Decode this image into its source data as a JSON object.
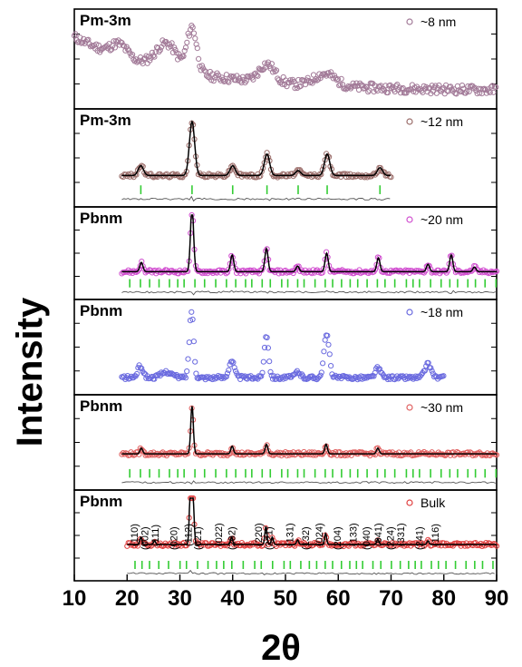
{
  "figure": {
    "ylabel": "Intensity",
    "xlabel": "2θ",
    "x_ticks": [
      "10",
      "20",
      "30",
      "40",
      "50",
      "60",
      "70",
      "80",
      "90"
    ]
  },
  "chart_data": [
    {
      "type": "scatter",
      "space_group": "Pm-3m",
      "size_label": "~8 nm",
      "xlim": [
        10,
        90
      ],
      "marker_color": "#a27a98",
      "baseline": 0.18,
      "peaks": [
        {
          "x": 18.5,
          "h": 0.12,
          "w": 1.5
        },
        {
          "x": 27.5,
          "h": 0.25,
          "w": 2.0
        },
        {
          "x": 32.3,
          "h": 0.45,
          "w": 0.9
        },
        {
          "x": 46.5,
          "h": 0.18,
          "w": 1.5
        },
        {
          "x": 57.5,
          "h": 0.12,
          "w": 2.0
        }
      ],
      "x_range": [
        10,
        90
      ],
      "start_level": 0.72,
      "decay": "exponential",
      "fit": false,
      "ticks": null,
      "difference": false
    },
    {
      "type": "scatter",
      "space_group": "Pm-3m",
      "size_label": "~12 nm",
      "xlim": [
        10,
        90
      ],
      "marker_color": "#9b6d6a",
      "fit_color": "#000000",
      "tick_color": "#33cc33",
      "baseline": 0.32,
      "peaks": [
        {
          "x": 22.6,
          "h": 0.1,
          "w": 0.5
        },
        {
          "x": 32.3,
          "h": 0.55,
          "w": 0.5
        },
        {
          "x": 40.0,
          "h": 0.1,
          "w": 0.5
        },
        {
          "x": 46.5,
          "h": 0.22,
          "w": 0.5
        },
        {
          "x": 52.4,
          "h": 0.05,
          "w": 0.5
        },
        {
          "x": 57.9,
          "h": 0.22,
          "w": 0.5
        },
        {
          "x": 67.9,
          "h": 0.08,
          "w": 0.5
        }
      ],
      "x_range": [
        19,
        70
      ],
      "fit": true,
      "ticks": [
        22.6,
        32.3,
        40.0,
        46.5,
        52.4,
        57.9,
        67.9
      ],
      "difference": true
    },
    {
      "type": "scatter",
      "space_group": "Pbnm",
      "size_label": "~20 nm",
      "xlim": [
        10,
        90
      ],
      "marker_color": "#d04fcf",
      "fit_color": "#000000",
      "tick_color": "#33cc33",
      "baseline": 0.3,
      "peaks": [
        {
          "x": 22.7,
          "h": 0.1,
          "w": 0.3
        },
        {
          "x": 32.3,
          "h": 0.7,
          "w": 0.3
        },
        {
          "x": 39.9,
          "h": 0.18,
          "w": 0.3
        },
        {
          "x": 46.4,
          "h": 0.25,
          "w": 0.3
        },
        {
          "x": 52.3,
          "h": 0.06,
          "w": 0.3
        },
        {
          "x": 57.8,
          "h": 0.2,
          "w": 0.3
        },
        {
          "x": 67.6,
          "h": 0.15,
          "w": 0.3
        },
        {
          "x": 77.0,
          "h": 0.08,
          "w": 0.3
        },
        {
          "x": 81.4,
          "h": 0.18,
          "w": 0.3
        },
        {
          "x": 85.8,
          "h": 0.05,
          "w": 0.3
        }
      ],
      "x_range": [
        19,
        90
      ],
      "fit": true,
      "ticks": "dense",
      "difference": true
    },
    {
      "type": "scatter",
      "space_group": "Pbnm",
      "size_label": "~18 nm",
      "xlim": [
        10,
        90
      ],
      "marker_color": "#6a6adf",
      "baseline": 0.18,
      "peaks": [
        {
          "x": 22.5,
          "h": 0.12,
          "w": 0.5
        },
        {
          "x": 27.5,
          "h": 0.06,
          "w": 1.0
        },
        {
          "x": 32.2,
          "h": 0.7,
          "w": 0.4
        },
        {
          "x": 39.8,
          "h": 0.18,
          "w": 0.5
        },
        {
          "x": 46.4,
          "h": 0.45,
          "w": 0.4
        },
        {
          "x": 52.3,
          "h": 0.06,
          "w": 0.5
        },
        {
          "x": 57.8,
          "h": 0.45,
          "w": 0.5
        },
        {
          "x": 67.5,
          "h": 0.1,
          "w": 0.5
        },
        {
          "x": 77.0,
          "h": 0.14,
          "w": 0.6
        }
      ],
      "x_range": [
        19,
        80
      ],
      "fit": false,
      "ticks": null,
      "difference": false
    },
    {
      "type": "scatter",
      "space_group": "Pbnm",
      "size_label": "~30 nm",
      "xlim": [
        10,
        90
      ],
      "marker_color": "#e06060",
      "fit_color": "#000000",
      "tick_color": "#33cc33",
      "baseline": 0.38,
      "peaks": [
        {
          "x": 22.7,
          "h": 0.06,
          "w": 0.25
        },
        {
          "x": 32.3,
          "h": 0.5,
          "w": 0.25
        },
        {
          "x": 39.9,
          "h": 0.08,
          "w": 0.25
        },
        {
          "x": 46.4,
          "h": 0.1,
          "w": 0.25
        },
        {
          "x": 57.7,
          "h": 0.1,
          "w": 0.25
        },
        {
          "x": 67.5,
          "h": 0.06,
          "w": 0.25
        }
      ],
      "x_range": [
        19,
        90
      ],
      "fit": true,
      "ticks": "dense",
      "difference": true
    },
    {
      "type": "scatter",
      "space_group": "Pbnm",
      "size_label": "Bulk",
      "xlim": [
        10,
        90
      ],
      "marker_color": "#e04040",
      "fit_color": "#000000",
      "tick_color": "#33cc33",
      "baseline": 0.4,
      "peaks": [
        {
          "x": 22.6,
          "h": 0.08,
          "w": 0.2
        },
        {
          "x": 25.2,
          "h": 0.04,
          "w": 0.2
        },
        {
          "x": 32.0,
          "h": 0.65,
          "w": 0.2
        },
        {
          "x": 32.5,
          "h": 0.5,
          "w": 0.2
        },
        {
          "x": 39.8,
          "h": 0.08,
          "w": 0.2
        },
        {
          "x": 46.3,
          "h": 0.2,
          "w": 0.2
        },
        {
          "x": 47.5,
          "h": 0.08,
          "w": 0.2
        },
        {
          "x": 52.3,
          "h": 0.05,
          "w": 0.2
        },
        {
          "x": 57.6,
          "h": 0.12,
          "w": 0.2
        },
        {
          "x": 67.5,
          "h": 0.06,
          "w": 0.2
        },
        {
          "x": 77.0,
          "h": 0.04,
          "w": 0.2
        }
      ],
      "x_range": [
        20,
        90
      ],
      "fit": true,
      "ticks": "dense",
      "difference": true,
      "hkl_labels": [
        {
          "text": "(110)",
          "x": 22.0
        },
        {
          "text": "(002)",
          "x": 24.0
        },
        {
          "text": "(111)",
          "x": 26.0
        },
        {
          "text": "(020)",
          "x": 29.5
        },
        {
          "text": "(112)",
          "x": 32.2
        },
        {
          "text": "(021)",
          "x": 34.0
        },
        {
          "text": "(022)",
          "x": 38.0
        },
        {
          "text": "(202)",
          "x": 40.5
        },
        {
          "text": "(220)",
          "x": 45.5
        },
        {
          "text": "(221)",
          "x": 47.5
        },
        {
          "text": "(131)",
          "x": 51.5
        },
        {
          "text": "(132)",
          "x": 54.5
        },
        {
          "text": "(024)",
          "x": 57.0
        },
        {
          "text": "(204)",
          "x": 60.5
        },
        {
          "text": "(133)",
          "x": 63.5
        },
        {
          "text": "(040)",
          "x": 66.0
        },
        {
          "text": "(041)",
          "x": 68.2
        },
        {
          "text": "(224)",
          "x": 70.5
        },
        {
          "text": "(331)",
          "x": 72.5
        },
        {
          "text": "(241)",
          "x": 76.0
        },
        {
          "text": "(116)",
          "x": 79.0
        }
      ]
    }
  ]
}
